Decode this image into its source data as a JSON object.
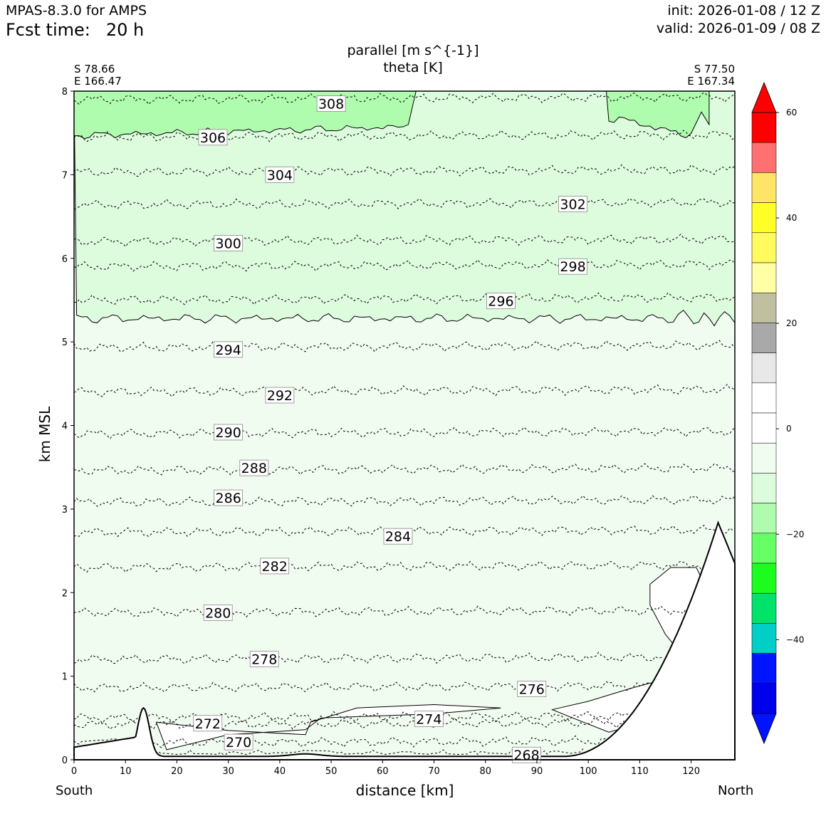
{
  "header": {
    "model": "MPAS-8.3.0 for AMPS",
    "fcst_label": "Fcst time:",
    "fcst_value": "20 h",
    "init": "init: 2026-01-08 / 12 Z",
    "valid": "valid: 2026-01-09 / 08 Z"
  },
  "corners": {
    "left_lat": "S 78.66",
    "left_lon": "E 166.47",
    "right_lat": "S 77.50",
    "right_lon": "E 167.34"
  },
  "direction": {
    "south": "South",
    "north": "North"
  },
  "colors": {
    "light_green": "#ddfcde",
    "pale_green": "#f1fcf0",
    "mid_green": "#b0fcaf",
    "terrain": "#ffffff",
    "contour": "#000000"
  },
  "chart_data": {
    "type": "contour",
    "title": "parallel [m s^{-1}]",
    "subtitle": "theta [K]",
    "xlabel": "distance [km]",
    "ylabel": "km MSL",
    "xlim": [
      0,
      128.5
    ],
    "ylim": [
      0,
      8
    ],
    "x_ticks": [
      0,
      10,
      20,
      30,
      40,
      50,
      60,
      70,
      80,
      90,
      100,
      110,
      120
    ],
    "y_ticks": [
      0,
      1,
      2,
      3,
      4,
      5,
      6,
      7,
      8
    ],
    "theta_contours": [
      {
        "level": 268,
        "label_x": 88,
        "z": 0.05
      },
      {
        "level": 270,
        "label_x": 32,
        "z": 0.2
      },
      {
        "level": 272,
        "label_x": 26,
        "z": 0.42
      },
      {
        "level": 274,
        "label_x": 69,
        "z": 0.5
      },
      {
        "level": 276,
        "label_x": 89,
        "z": 0.86
      },
      {
        "level": 278,
        "label_x": 37,
        "z": 1.2
      },
      {
        "level": 280,
        "label_x": 28,
        "z": 1.76
      },
      {
        "level": 282,
        "label_x": 39,
        "z": 2.3
      },
      {
        "level": 284,
        "label_x": 63,
        "z": 2.72
      },
      {
        "level": 286,
        "label_x": 30,
        "z": 3.08
      },
      {
        "level": 288,
        "label_x": 35,
        "z": 3.46
      },
      {
        "level": 290,
        "label_x": 30,
        "z": 3.9
      },
      {
        "level": 292,
        "label_x": 40,
        "z": 4.4
      },
      {
        "level": 294,
        "label_x": 30,
        "z": 4.93
      },
      {
        "level": 296,
        "label_x": 83,
        "z": 5.5
      },
      {
        "level": 298,
        "label_x": 97,
        "z": 5.9
      },
      {
        "level": 300,
        "label_x": 30,
        "z": 6.2
      },
      {
        "level": 302,
        "label_x": 97,
        "z": 6.64
      },
      {
        "level": 304,
        "label_x": 40,
        "z": 7.03
      },
      {
        "level": 306,
        "label_x": 27,
        "z": 7.45
      },
      {
        "level": 308,
        "label_x": 50,
        "z": 7.9
      }
    ],
    "colorbar": {
      "ticks": [
        60,
        40,
        20,
        0,
        -20,
        -40
      ],
      "colors": [
        "#ff0000",
        "#ff7070",
        "#ffe567",
        "#ffff28",
        "#fffb5f",
        "#ffffa5",
        "#c0c0a0",
        "#a9a9a9",
        "#e8e8e8",
        "#ffffff",
        "#ffffff",
        "#f1fcf0",
        "#ddfcde",
        "#b0fcaf",
        "#66ff66",
        "#1cfd1f",
        "#00e36b",
        "#00cfc8",
        "#0014ff",
        "#0000ed"
      ],
      "top_extend": "#ff0000",
      "bottom_extend": "#0014ff"
    }
  }
}
